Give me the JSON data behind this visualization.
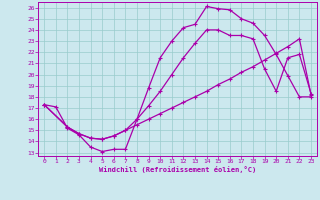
{
  "xlabel": "Windchill (Refroidissement éolien,°C)",
  "bg_color": "#cce8ee",
  "line_color": "#aa00aa",
  "grid_color": "#99cccc",
  "xlim": [
    -0.5,
    23.5
  ],
  "ylim": [
    12.7,
    26.5
  ],
  "xticks": [
    0,
    1,
    2,
    3,
    4,
    5,
    6,
    7,
    8,
    9,
    10,
    11,
    12,
    13,
    14,
    15,
    16,
    17,
    18,
    19,
    20,
    21,
    22,
    23
  ],
  "yticks": [
    13,
    14,
    15,
    16,
    17,
    18,
    19,
    20,
    21,
    22,
    23,
    24,
    25,
    26
  ],
  "line1_x": [
    0,
    1,
    2,
    3,
    4,
    5,
    6,
    7,
    8,
    9,
    10,
    11,
    12,
    13,
    14,
    15,
    16,
    17,
    18,
    19,
    20,
    21,
    22,
    23
  ],
  "line1_y": [
    17.3,
    17.1,
    15.2,
    14.6,
    13.5,
    13.1,
    13.3,
    13.3,
    16.0,
    18.8,
    21.5,
    23.0,
    24.2,
    24.5,
    26.1,
    25.9,
    25.8,
    25.0,
    24.6,
    23.5,
    21.8,
    19.9,
    18.0,
    18.0
  ],
  "line2_x": [
    0,
    2,
    3,
    4,
    5,
    6,
    7,
    8,
    9,
    10,
    11,
    12,
    13,
    14,
    15,
    16,
    17,
    18,
    19,
    20,
    21,
    22,
    23
  ],
  "line2_y": [
    17.3,
    15.3,
    14.7,
    14.3,
    14.2,
    14.5,
    15.0,
    15.5,
    16.0,
    16.5,
    17.0,
    17.5,
    18.0,
    18.5,
    19.1,
    19.6,
    20.2,
    20.7,
    21.3,
    21.9,
    22.5,
    23.2,
    18.2
  ],
  "line3_x": [
    0,
    2,
    3,
    4,
    5,
    6,
    7,
    8,
    9,
    10,
    11,
    12,
    13,
    14,
    15,
    16,
    17,
    18,
    19,
    20,
    21,
    22,
    23
  ],
  "line3_y": [
    17.3,
    15.3,
    14.7,
    14.3,
    14.2,
    14.5,
    15.0,
    16.0,
    17.2,
    18.5,
    20.0,
    21.5,
    22.8,
    24.0,
    24.0,
    23.5,
    23.5,
    23.2,
    20.5,
    18.5,
    21.5,
    21.8,
    18.3
  ]
}
